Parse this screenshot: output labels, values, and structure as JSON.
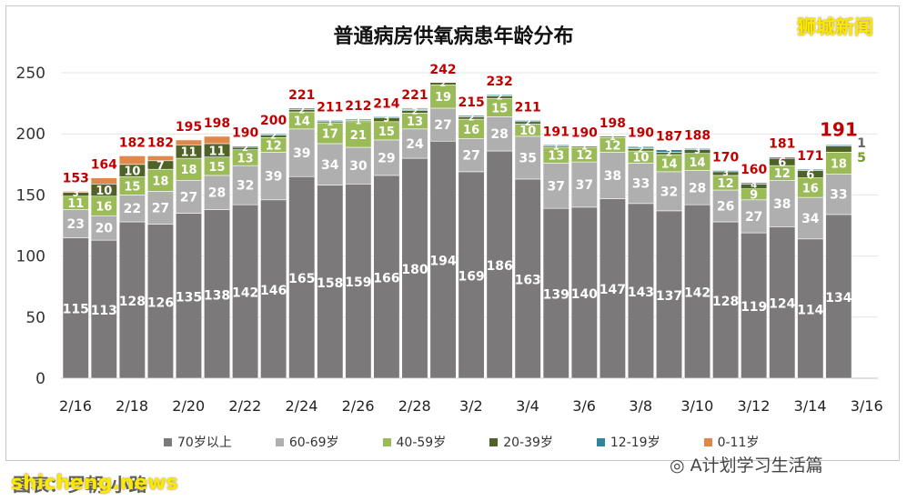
{
  "title": "普通病房供氧病患年龄分布",
  "brand": "狮城新闻",
  "watermark": "A计划学习生活篇",
  "credit": "图表：罗朝·小路",
  "site": "shicheng.news",
  "colors": {
    "70+": "#7b797a",
    "60-69": "#b0afaf",
    "40-59": "#9bbb59",
    "20-39": "#4f6228",
    "12-19": "#31859b",
    "0-11": "#e0874a",
    "total_label": "#c00000"
  },
  "chart_data": {
    "type": "bar",
    "stacked": true,
    "ylim": [
      0,
      250
    ],
    "yticks": [
      0,
      50,
      100,
      150,
      200,
      250
    ],
    "categories": [
      "2/16",
      "2/17",
      "2/18",
      "2/19",
      "2/20",
      "2/21",
      "2/22",
      "2/23",
      "2/24",
      "2/25",
      "2/26",
      "2/27",
      "2/28",
      "3/1",
      "3/2",
      "3/3",
      "3/4",
      "3/5",
      "3/6",
      "3/7",
      "3/8",
      "3/9",
      "3/10",
      "3/11",
      "3/12",
      "3/13",
      "3/14",
      "3/15"
    ],
    "xticklabels": [
      "2/16",
      "2/18",
      "2/20",
      "2/22",
      "2/24",
      "2/26",
      "2/28",
      "3/2",
      "3/4",
      "3/6",
      "3/8",
      "3/10",
      "3/12",
      "3/14",
      "3/16"
    ],
    "series": [
      {
        "name": "70岁以上",
        "key": "70+",
        "values": [
          115,
          113,
          128,
          126,
          135,
          138,
          142,
          146,
          165,
          158,
          159,
          166,
          180,
          194,
          169,
          186,
          163,
          139,
          140,
          147,
          143,
          137,
          142,
          128,
          119,
          124,
          114,
          134
        ]
      },
      {
        "name": "60-69岁",
        "key": "60-69",
        "values": [
          23,
          20,
          22,
          27,
          27,
          28,
          32,
          39,
          39,
          34,
          30,
          29,
          24,
          27,
          27,
          28,
          35,
          37,
          37,
          38,
          33,
          32,
          28,
          26,
          27,
          38,
          34,
          33
        ]
      },
      {
        "name": "40-59岁",
        "key": "40-59",
        "values": [
          11,
          16,
          15,
          18,
          18,
          15,
          13,
          12,
          14,
          17,
          21,
          15,
          13,
          19,
          16,
          15,
          10,
          13,
          12,
          12,
          10,
          14,
          14,
          12,
          9,
          12,
          16,
          18
        ]
      },
      {
        "name": "20-39岁",
        "key": "20-39",
        "values": [
          3,
          10,
          10,
          7,
          11,
          11,
          2,
          2,
          2,
          1,
          1,
          3,
          2,
          2,
          2,
          2,
          2,
          1,
          1,
          1,
          2,
          2,
          3,
          3,
          4,
          6,
          6,
          5
        ]
      },
      {
        "name": "12-19岁",
        "key": "12-19",
        "values": [
          0,
          0,
          0,
          0,
          0,
          0,
          1,
          1,
          1,
          1,
          1,
          1,
          1,
          0,
          1,
          1,
          1,
          1,
          0,
          0,
          1,
          2,
          1,
          1,
          1,
          1,
          1,
          1
        ]
      },
      {
        "name": "0-11岁",
        "key": "0-11",
        "values": [
          1,
          5,
          7,
          4,
          4,
          6,
          0,
          0,
          0,
          0,
          0,
          0,
          1,
          0,
          0,
          0,
          0,
          0,
          0,
          0,
          1,
          0,
          0,
          0,
          0,
          0,
          0,
          0
        ]
      }
    ],
    "segment_labels": {
      "40-59": [
        11,
        16,
        15,
        18,
        18,
        15,
        13,
        12,
        14,
        17,
        21,
        15,
        13,
        19,
        16,
        15,
        10,
        13,
        12,
        12,
        10,
        14,
        14,
        12,
        9,
        12,
        16,
        18
      ],
      "20-39": [
        3,
        10,
        10,
        7,
        11,
        11,
        2,
        2,
        2,
        1,
        1,
        3,
        2,
        2,
        2,
        2,
        2,
        1,
        1,
        1,
        2,
        2,
        3,
        3,
        4,
        6,
        6,
        null
      ]
    },
    "totals": [
      153,
      164,
      182,
      182,
      195,
      198,
      190,
      200,
      221,
      211,
      212,
      214,
      221,
      242,
      215,
      232,
      211,
      191,
      190,
      198,
      190,
      187,
      188,
      170,
      160,
      181,
      171,
      191
    ],
    "last_bar_side_labels": {
      "20-39": "5",
      "12-19": "1"
    }
  }
}
